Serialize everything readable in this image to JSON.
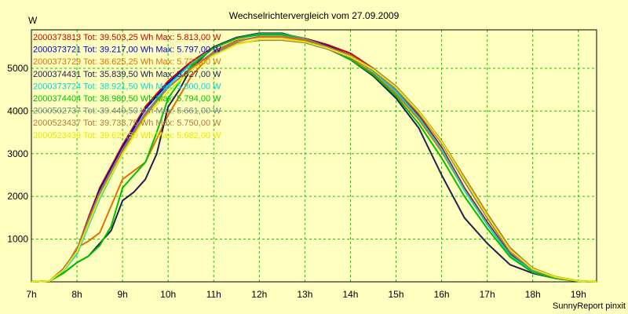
{
  "chart_data": {
    "type": "line",
    "title": "Wechselrichtervergleich vom 27.09.2009",
    "ylabel": "W",
    "xlabel": "",
    "credit": "SunnyReport pinxit",
    "x_unit": "hour",
    "xlim": [
      7,
      19.4
    ],
    "ylim": [
      0,
      5900
    ],
    "x_ticks": [
      7,
      8,
      9,
      10,
      11,
      12,
      13,
      14,
      15,
      16,
      17,
      18,
      19
    ],
    "x_tick_labels": [
      "7h",
      "8h",
      "9h",
      "10h",
      "11h",
      "12h",
      "13h",
      "14h",
      "15h",
      "16h",
      "17h",
      "18h",
      "19h"
    ],
    "y_ticks": [
      1000,
      2000,
      3000,
      4000,
      5000
    ],
    "y_tick_labels": [
      "1000",
      "2000",
      "3000",
      "4000",
      "5000"
    ],
    "grid": true,
    "legend_position": "top-left",
    "series": [
      {
        "name": "2000373813 Tot: 39.503,25 Wh Max: 5.813,00 W",
        "color": "#cc0000",
        "x": [
          7,
          7.4,
          7.7,
          8,
          8.25,
          8.5,
          9,
          9.5,
          10,
          10.5,
          11,
          11.5,
          12,
          12.5,
          13,
          13.5,
          14,
          14.5,
          15,
          15.5,
          16,
          16.5,
          17,
          17.5,
          18,
          18.5,
          19,
          19.4
        ],
        "y": [
          0,
          20,
          300,
          750,
          1500,
          2200,
          3200,
          4100,
          4700,
          5150,
          5500,
          5720,
          5800,
          5800,
          5700,
          5550,
          5350,
          5000,
          4500,
          3900,
          3150,
          2200,
          1400,
          650,
          250,
          100,
          20,
          0
        ]
      },
      {
        "name": "2000373721 Tot: 39.217,00 Wh Max: 5.797,00 W",
        "color": "#0000cc",
        "x": [
          7,
          7.4,
          7.7,
          8,
          8.25,
          8.5,
          9,
          9.5,
          10,
          10.5,
          11,
          11.5,
          12,
          12.5,
          13,
          13.5,
          14,
          14.5,
          15,
          15.5,
          16,
          16.5,
          17,
          17.5,
          18,
          18.5,
          19,
          19.4
        ],
        "y": [
          0,
          20,
          280,
          700,
          1450,
          2150,
          3150,
          4050,
          4650,
          5100,
          5480,
          5700,
          5790,
          5790,
          5690,
          5520,
          5300,
          4950,
          4450,
          3850,
          3100,
          2150,
          1350,
          620,
          240,
          90,
          15,
          0
        ]
      },
      {
        "name": "2000373729 Tot: 36.625,25 Wh Max: 5.737,00 W",
        "color": "#e07000",
        "x": [
          7,
          7.4,
          7.7,
          8,
          8.25,
          8.5,
          9,
          9.5,
          10,
          10.5,
          11,
          11.5,
          12,
          12.5,
          13,
          13.5,
          14,
          14.5,
          15,
          15.5,
          16,
          16.5,
          17,
          17.5,
          18,
          18.5,
          19,
          19.4
        ],
        "y": [
          0,
          20,
          250,
          800,
          950,
          1150,
          2400,
          2800,
          3900,
          4800,
          5400,
          5650,
          5730,
          5730,
          5650,
          5450,
          5220,
          4880,
          4400,
          3800,
          3050,
          2150,
          1350,
          620,
          230,
          80,
          15,
          0
        ]
      },
      {
        "name": "2000374431 Tot: 35.839,50 Wh Max: 5.827,00 W",
        "color": "#202050",
        "x": [
          7,
          7.4,
          7.7,
          8,
          8.25,
          8.5,
          8.75,
          9,
          9.25,
          9.5,
          9.75,
          10,
          10.25,
          10.5,
          11,
          11.5,
          12,
          12.5,
          13,
          13.5,
          14,
          14.5,
          15,
          15.5,
          16,
          16.5,
          17,
          17.5,
          18,
          18.5,
          19,
          19.4
        ],
        "y": [
          0,
          20,
          200,
          450,
          600,
          900,
          1200,
          1900,
          2100,
          2400,
          3000,
          4100,
          4500,
          5000,
          5500,
          5720,
          5820,
          5820,
          5680,
          5460,
          5200,
          4820,
          4300,
          3600,
          2500,
          1500,
          900,
          400,
          200,
          80,
          15,
          0
        ]
      },
      {
        "name": "2000373724 Tot: 38.921,50 Wh Max: 5.800,00 W",
        "color": "#00d8d8",
        "x": [
          7,
          7.4,
          7.7,
          8,
          8.25,
          8.5,
          9,
          9.5,
          10,
          10.5,
          11,
          11.5,
          12,
          12.5,
          13,
          13.5,
          14,
          14.5,
          15,
          15.5,
          16,
          16.5,
          17,
          17.5,
          18,
          18.5,
          19,
          19.4
        ],
        "y": [
          0,
          20,
          250,
          650,
          1300,
          1950,
          3000,
          3950,
          4600,
          5100,
          5480,
          5700,
          5800,
          5800,
          5690,
          5500,
          5280,
          4930,
          4450,
          3850,
          3100,
          2150,
          1350,
          620,
          240,
          90,
          15,
          0
        ]
      },
      {
        "name": "2000374404 Tot: 36.980,50 Wh Max: 5.794,00 W",
        "color": "#00c000",
        "x": [
          7,
          7.4,
          7.7,
          8,
          8.25,
          8.5,
          8.75,
          9,
          9.25,
          9.5,
          9.75,
          10,
          10.5,
          11,
          11.5,
          12,
          12.5,
          13,
          13.5,
          14,
          14.5,
          15,
          15.5,
          16,
          16.5,
          17,
          17.5,
          18,
          18.5,
          19,
          19.4
        ],
        "y": [
          0,
          20,
          200,
          450,
          600,
          850,
          1300,
          2200,
          2500,
          2800,
          3500,
          4300,
          5050,
          5480,
          5700,
          5790,
          5790,
          5680,
          5470,
          5200,
          4850,
          4350,
          3700,
          2900,
          2000,
          1250,
          580,
          220,
          80,
          15,
          0
        ]
      },
      {
        "name": "2000502737 Tot: 39.449,50 Wh Max: 5.661,00 W",
        "color": "#808080",
        "x": [
          7,
          7.4,
          7.7,
          8,
          8.25,
          8.5,
          9,
          9.5,
          10,
          10.5,
          11,
          11.5,
          12,
          12.5,
          13,
          13.5,
          14,
          14.5,
          15,
          15.5,
          16,
          16.5,
          17,
          17.5,
          18,
          18.5,
          19,
          19.4
        ],
        "y": [
          0,
          20,
          280,
          750,
          1450,
          2100,
          3100,
          3950,
          4550,
          5000,
          5350,
          5580,
          5660,
          5660,
          5600,
          5450,
          5250,
          4950,
          4500,
          3950,
          3250,
          2350,
          1500,
          700,
          270,
          100,
          20,
          0
        ]
      },
      {
        "name": "2000523437 Tot: 39.738,75 Wh Max: 5.750,00 W",
        "color": "#b07840",
        "x": [
          7,
          7.4,
          7.7,
          8,
          8.25,
          8.5,
          9,
          9.5,
          10,
          10.5,
          11,
          11.5,
          12,
          12.5,
          13,
          13.5,
          14,
          14.5,
          15,
          15.5,
          16,
          16.5,
          17,
          17.5,
          18,
          18.5,
          19,
          19.4
        ],
        "y": [
          0,
          20,
          280,
          720,
          1400,
          2050,
          3050,
          3900,
          4550,
          5000,
          5380,
          5620,
          5750,
          5750,
          5680,
          5500,
          5300,
          5000,
          4580,
          4000,
          3300,
          2450,
          1600,
          800,
          320,
          120,
          25,
          0
        ]
      },
      {
        "name": "2000523439 Tot: 39.627,50 Wh Max: 5.682,00 W",
        "color": "#e8e800",
        "x": [
          7,
          7.4,
          7.7,
          8,
          8.25,
          8.5,
          9,
          9.5,
          10,
          10.5,
          11,
          11.5,
          12,
          12.5,
          13,
          13.5,
          14,
          14.5,
          15,
          15.5,
          16,
          16.5,
          17,
          17.5,
          18,
          18.5,
          19,
          19.4
        ],
        "y": [
          0,
          20,
          270,
          700,
          1350,
          2000,
          3000,
          3850,
          4450,
          4950,
          5300,
          5560,
          5680,
          5680,
          5620,
          5470,
          5270,
          4970,
          4550,
          3980,
          3280,
          2400,
          1550,
          750,
          300,
          110,
          20,
          0
        ]
      }
    ]
  }
}
